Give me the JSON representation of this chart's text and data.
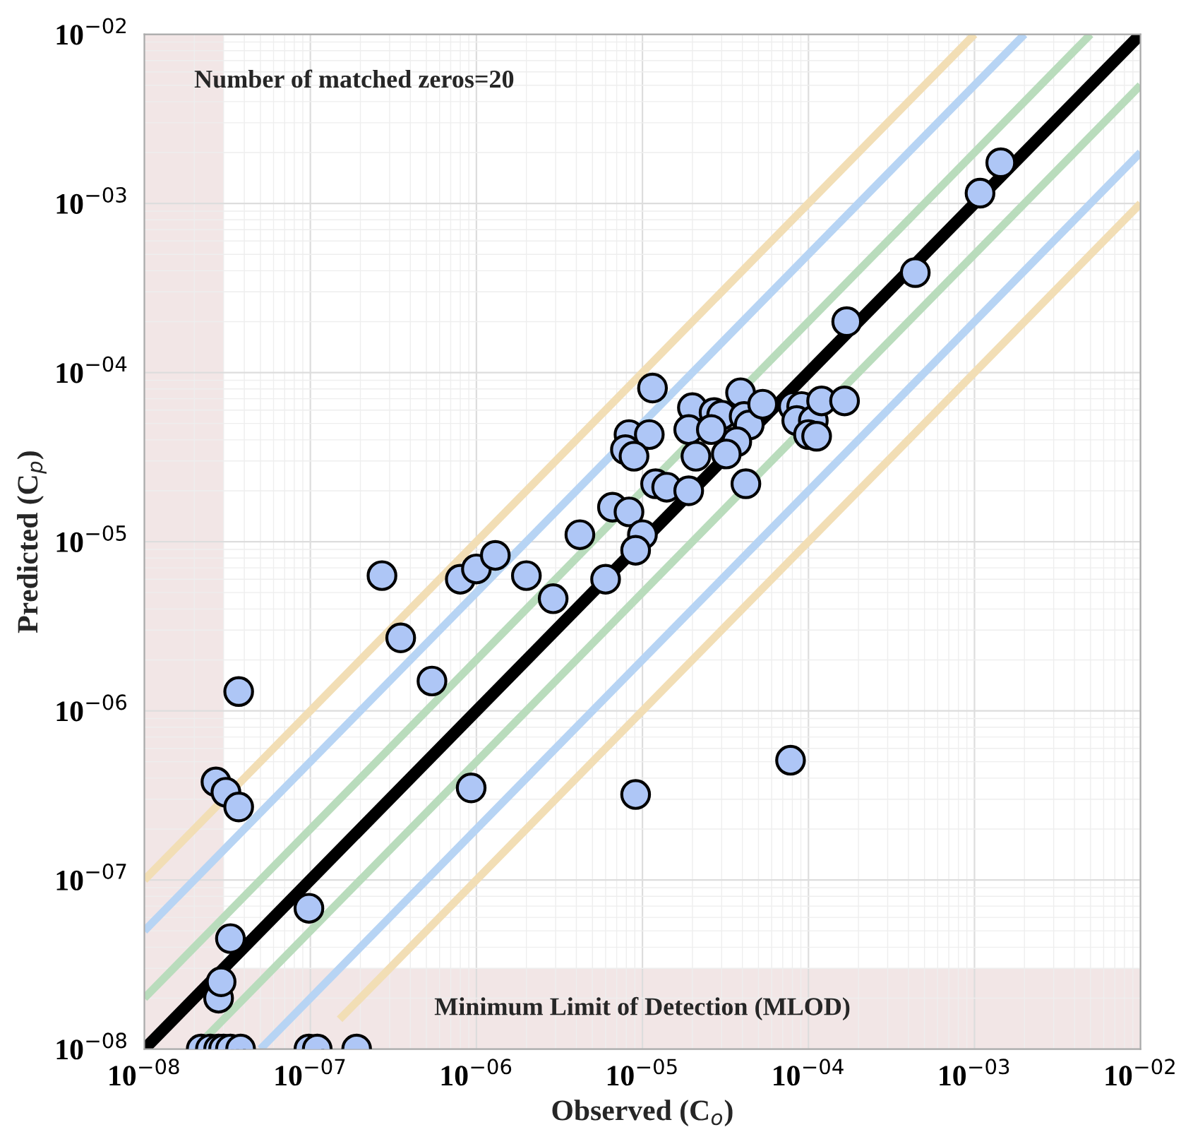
{
  "chart_data": {
    "type": "scatter",
    "xlabel": "Observed (C$_{o}$)",
    "ylabel": "Predicted (C$_{p}$)",
    "annotations": [
      "Number of matched zeros=20"
    ],
    "log": "xy",
    "grid": true,
    "legend": false,
    "xlim": [
      1e-08,
      0.01
    ],
    "ylim": [
      1e-08,
      0.01
    ],
    "xticks": [
      {
        "value": 1e-08,
        "label": "10$^{−08}$"
      },
      {
        "value": 1e-07,
        "label": "10$^{−07}$"
      },
      {
        "value": 1e-06,
        "label": "10$^{−06}$"
      },
      {
        "value": 1e-05,
        "label": "10$^{−05}$"
      },
      {
        "value": 0.0001,
        "label": "10$^{−04}$"
      },
      {
        "value": 0.001,
        "label": "10$^{−03}$"
      },
      {
        "value": 0.01,
        "label": "10$^{−02}$"
      }
    ],
    "yticks": [
      {
        "value": 1e-08,
        "label": "10$^{−08}$"
      },
      {
        "value": 1e-07,
        "label": "10$^{−07}$"
      },
      {
        "value": 1e-06,
        "label": "10$^{−06}$"
      },
      {
        "value": 1e-05,
        "label": "10$^{−05}$"
      },
      {
        "value": 0.0001,
        "label": "10$^{−04}$"
      },
      {
        "value": 0.001,
        "label": "10$^{−03}$"
      },
      {
        "value": 0.01,
        "label": "10$^{−02}$"
      }
    ],
    "bands": [
      {
        "axis": "x",
        "from": 1e-08,
        "to": 3e-08,
        "color": "#f2e6e6"
      },
      {
        "axis": "y",
        "from": 1e-08,
        "to": 3e-08,
        "label": "Minimum Limit of Detection (MLOD)",
        "color": "#f2e6e6"
      }
    ],
    "series": [
      {
        "type": "line",
        "color": "#f2deb5",
        "x": [
          1e-08,
          0.001
        ],
        "values": [
          1e-07,
          0.01
        ]
      },
      {
        "type": "line",
        "color": "#b7d4f4",
        "x": [
          1e-08,
          0.002
        ],
        "values": [
          5e-08,
          0.01
        ]
      },
      {
        "type": "line",
        "color": "#b9dcbc",
        "x": [
          1e-08,
          0.005
        ],
        "values": [
          2e-08,
          0.01
        ]
      },
      {
        "type": "line",
        "color": "#000000",
        "x": [
          1e-08,
          0.01
        ],
        "values": [
          1e-08,
          0.01
        ]
      },
      {
        "type": "line",
        "color": "#b9dcbc",
        "x": [
          2e-08,
          0.01
        ],
        "values": [
          1e-08,
          0.005
        ]
      },
      {
        "type": "line",
        "color": "#b7d4f4",
        "x": [
          5e-08,
          0.01
        ],
        "values": [
          1e-08,
          0.002
        ]
      },
      {
        "type": "line",
        "color": "#f2deb5",
        "x": [
          1.5e-07,
          0.01
        ],
        "values": [
          1.5e-08,
          0.001
        ]
      },
      {
        "marker": "circle",
        "color": "#aec6f6",
        "x": [
          2.2e-08,
          2.5e-08,
          2.8e-08,
          3e-08,
          3.3e-08,
          3.8e-08,
          9.8e-08,
          1.1e-07,
          1.9e-07,
          2.8e-08,
          2.9e-08,
          3.3e-08,
          9.8e-08,
          2.7e-08,
          3.1e-08,
          3.7e-08,
          3.7e-08,
          9.3e-07,
          3.5e-07,
          5.4e-07,
          2.7e-07,
          8e-07,
          1e-06,
          1.3e-06,
          2e-06,
          2.9e-06,
          4.2e-06,
          6e-06,
          1.15e-05,
          8.3e-06,
          1.1e-05,
          7.9e-06,
          8.9e-06,
          2e-05,
          1.9e-05,
          2.7e-05,
          3e-05,
          2.6e-05,
          3.9e-05,
          4.1e-05,
          4.4e-05,
          5.3e-05,
          2.1e-05,
          3.7e-05,
          3.2e-05,
          1.2e-05,
          1.4e-05,
          1.9e-05,
          4.2e-05,
          6.6e-06,
          8.3e-06,
          1e-05,
          9.1e-06,
          8.1e-05,
          9.1e-05,
          8.5e-05,
          0.000107,
          0.0001,
          0.000112,
          0.00012,
          0.000165,
          0.00017,
          0.00044,
          0.00108,
          0.00144,
          9.1e-06,
          7.8e-05
        ],
        "values": [
          1e-08,
          1e-08,
          1e-08,
          1e-08,
          1e-08,
          1e-08,
          1e-08,
          1e-08,
          1e-08,
          2e-08,
          2.5e-08,
          4.5e-08,
          6.8e-08,
          3.8e-07,
          3.3e-07,
          2.7e-07,
          1.3e-06,
          3.5e-07,
          2.7e-06,
          1.5e-06,
          6.3e-06,
          6e-06,
          6.9e-06,
          8.3e-06,
          6.3e-06,
          4.6e-06,
          1.1e-05,
          6e-06,
          8.1e-05,
          4.3e-05,
          4.3e-05,
          3.5e-05,
          3.2e-05,
          6.2e-05,
          4.6e-05,
          5.8e-05,
          5.6e-05,
          4.6e-05,
          7.6e-05,
          5.5e-05,
          4.9e-05,
          6.5e-05,
          3.2e-05,
          3.9e-05,
          3.3e-05,
          2.2e-05,
          2.1e-05,
          2e-05,
          2.2e-05,
          1.6e-05,
          1.5e-05,
          1.1e-05,
          8.9e-06,
          6.3e-05,
          6.3e-05,
          5.2e-05,
          5.2e-05,
          4.3e-05,
          4.2e-05,
          6.8e-05,
          6.8e-05,
          0.0002,
          0.00039,
          0.00115,
          0.00174,
          3.2e-07,
          5.1e-07
        ]
      }
    ]
  }
}
